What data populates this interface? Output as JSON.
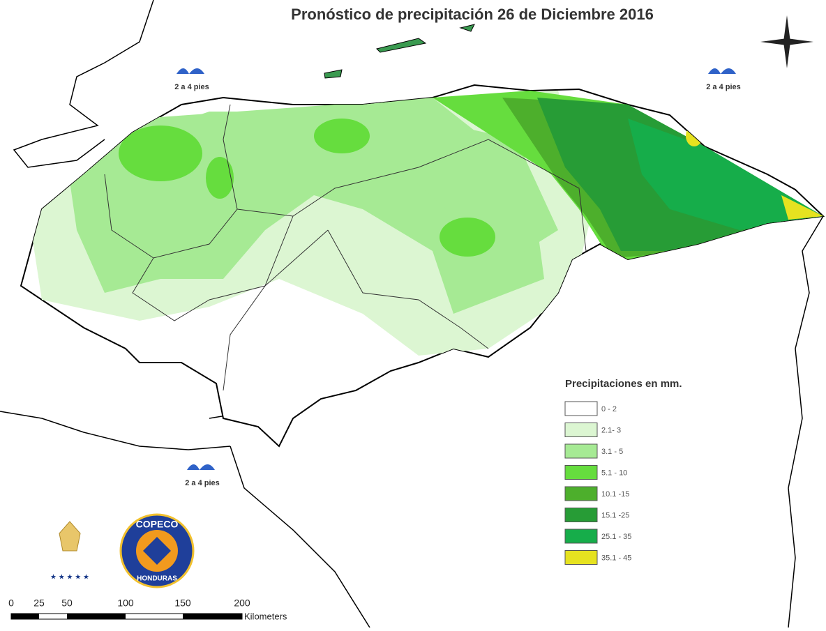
{
  "title": "Pronóstico de precipitación 26 de Diciembre 2016",
  "waves": [
    {
      "label": "2 a 4 pies"
    },
    {
      "label": "2 a 4 pies"
    },
    {
      "label": "2 a 4 pies"
    }
  ],
  "legend": {
    "title": "Precipitaciones en mm.",
    "items": [
      {
        "label": "0 - 2",
        "color": "#ffffff"
      },
      {
        "label": "2.1- 3",
        "color": "#dcf6d2"
      },
      {
        "label": "3.1 - 5",
        "color": "#a6ea94"
      },
      {
        "label": "5.1 - 10",
        "color": "#66dd3e"
      },
      {
        "label": "10.1 -15",
        "color": "#4daf2c"
      },
      {
        "label": "15.1 -25",
        "color": "#279c36"
      },
      {
        "label": "25.1 - 35",
        "color": "#16ad4a"
      },
      {
        "label": "35.1 - 45",
        "color": "#e6e220"
      }
    ]
  },
  "logos": {
    "copeco": "COPECO",
    "country": "HONDURAS"
  },
  "scale": {
    "ticks": [
      "0",
      "25",
      "50",
      "100",
      "150",
      "200"
    ],
    "unit": "Kilometers"
  }
}
